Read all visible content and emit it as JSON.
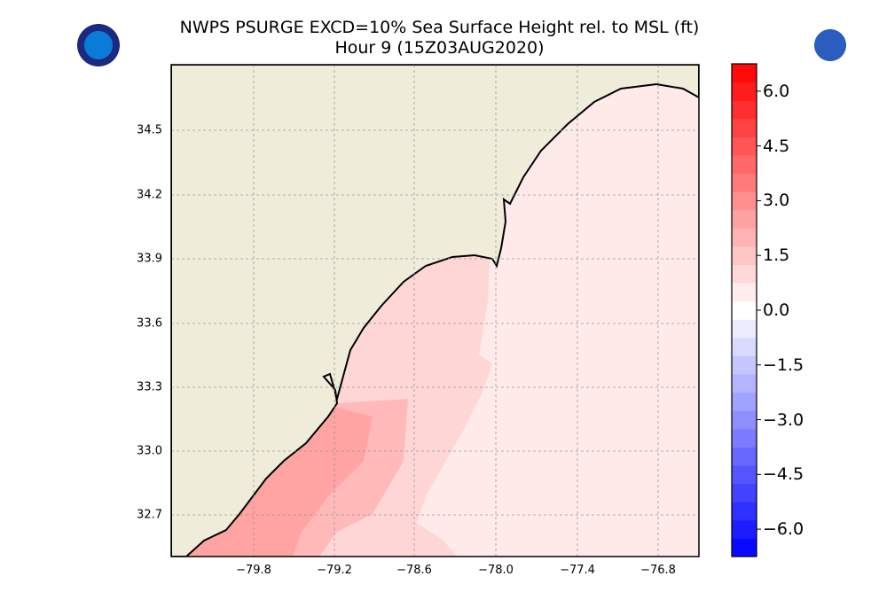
{
  "chart_data": {
    "type": "heatmap",
    "title": "NWPS PSURGE EXCD=10% Sea Surface Height rel. to MSL (ft)",
    "subtitle": "Hour 9 (15Z03AUG2020)",
    "x_ticks": [
      "−79.8",
      "−79.2",
      "−78.6",
      "−78.0",
      "−77.4",
      "−76.8"
    ],
    "y_ticks": [
      "34.5",
      "34.2",
      "33.9",
      "33.6",
      "33.3",
      "33.0",
      "32.7"
    ],
    "xlim": [
      -80.4,
      -76.5
    ],
    "ylim": [
      32.5,
      34.8
    ],
    "grid": true,
    "colorbar": {
      "ticks": [
        "6.0",
        "4.5",
        "3.0",
        "1.5",
        "0.0",
        "−1.5",
        "−3.0",
        "−4.5",
        "−6.0"
      ],
      "range": [
        -6.75,
        6.75
      ],
      "step": 0.5,
      "colormap": "bwr"
    },
    "surge_levels_ft": {
      "nearshore_sc": 1.25,
      "inner_shelf": 0.75,
      "offshore": 0.25
    },
    "colors": {
      "land": "#efedda",
      "nearshore": "#ffa3a3",
      "mid": "#ffb9b9",
      "inner": "#ffd6d6",
      "offshore": "#ffeaea"
    }
  },
  "logos": {
    "left": "NOAA",
    "right": "NATIONAL WEATHER SERVICE"
  }
}
